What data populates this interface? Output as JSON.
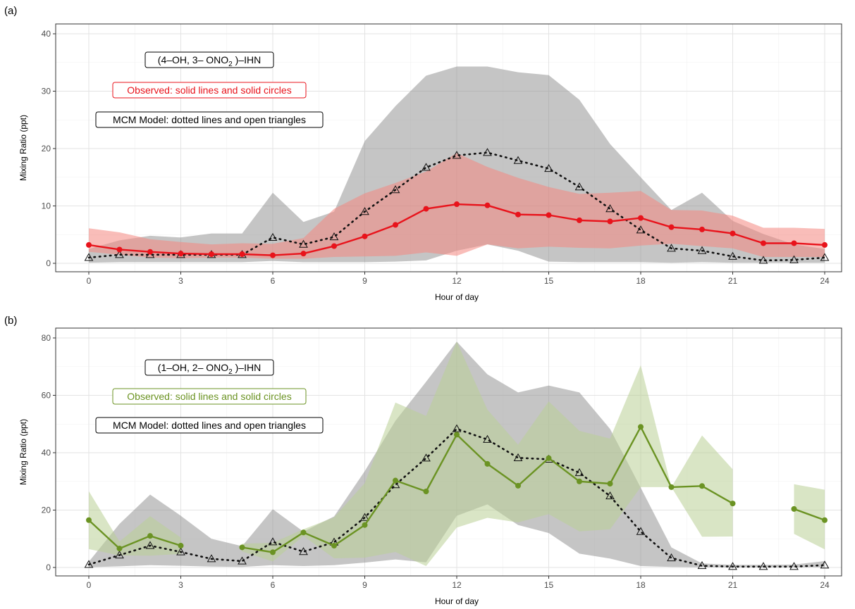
{
  "figure": {
    "panel_labels": [
      "(a)",
      "(b)"
    ]
  },
  "chart_data": [
    {
      "type": "line",
      "panel": "(a)",
      "xlabel": "Hour of day",
      "ylabel": "Mixing Ratio (ppt)",
      "xlim": [
        0,
        24
      ],
      "ylim": [
        0,
        40
      ],
      "xticks": [
        0,
        3,
        6,
        9,
        12,
        15,
        18,
        21,
        24
      ],
      "yticks": [
        0,
        10,
        20,
        30,
        40
      ],
      "grid": true,
      "annotations": {
        "compound": {
          "pre": "(4–OH, 3– ONO",
          "sub": "2",
          "post": " )–IHN"
        },
        "observed_note": "Observed: solid lines and solid circles",
        "model_note": "MCM Model: dotted lines and open triangles"
      },
      "colors": {
        "observed": "#e8131b",
        "observed_band": "#f4877f",
        "model": "#111111",
        "model_band": "#8c8c8c"
      },
      "x": [
        0,
        1,
        2,
        3,
        4,
        5,
        6,
        7,
        8,
        9,
        10,
        11,
        12,
        13,
        14,
        15,
        16,
        17,
        18,
        19,
        20,
        21,
        22,
        23,
        24
      ],
      "series": [
        {
          "role": "observed",
          "values": [
            3.2,
            2.4,
            2.0,
            1.7,
            1.6,
            1.6,
            1.4,
            1.7,
            3.0,
            4.7,
            6.7,
            9.5,
            10.3,
            10.1,
            8.5,
            8.4,
            7.5,
            7.3,
            7.9,
            6.3,
            5.9,
            5.2,
            3.5,
            3.5,
            3.2
          ],
          "band_upper": [
            6.1,
            5.4,
            4.2,
            3.7,
            3.3,
            3.5,
            3.4,
            4.4,
            9.5,
            12.2,
            14.0,
            16.0,
            19.2,
            16.8,
            14.9,
            13.3,
            12.1,
            12.3,
            12.6,
            9.3,
            9.2,
            8.3,
            6.2,
            6.2,
            6.0
          ],
          "band_lower": [
            2.0,
            1.5,
            1.0,
            0.9,
            1.0,
            1.0,
            0.8,
            0.8,
            1.1,
            1.2,
            1.3,
            1.9,
            1.3,
            3.3,
            2.6,
            2.9,
            2.7,
            2.6,
            3.1,
            3.4,
            3.0,
            2.6,
            1.1,
            1.1,
            1.1
          ]
        },
        {
          "role": "model",
          "values": [
            1.0,
            1.5,
            1.5,
            1.5,
            1.5,
            1.5,
            4.5,
            3.3,
            4.6,
            9.0,
            12.8,
            16.7,
            18.8,
            19.3,
            17.9,
            16.5,
            13.3,
            9.5,
            5.8,
            2.6,
            2.2,
            1.2,
            0.5,
            0.6,
            1.0
          ],
          "band_upper": [
            2.5,
            4.0,
            4.8,
            4.5,
            5.2,
            5.2,
            12.3,
            7.2,
            9.0,
            21.3,
            27.4,
            32.7,
            34.3,
            34.3,
            33.3,
            32.8,
            28.5,
            20.8,
            15.0,
            9.3,
            12.3,
            7.4,
            5.1,
            3.3,
            2.5
          ],
          "band_lower": [
            0.1,
            0.2,
            0.2,
            0.2,
            0.2,
            0.2,
            0.4,
            0.2,
            0.2,
            0.2,
            0.3,
            0.5,
            2.2,
            3.3,
            2.2,
            0.3,
            0.2,
            0.2,
            0.2,
            0.1,
            0.2,
            0.1,
            0.1,
            0.1,
            0.1
          ]
        }
      ]
    },
    {
      "type": "line",
      "panel": "(b)",
      "xlabel": "Hour of day",
      "ylabel": "Mixing Ratio (ppt)",
      "xlim": [
        0,
        24
      ],
      "ylim": [
        0,
        80
      ],
      "xticks": [
        0,
        3,
        6,
        9,
        12,
        15,
        18,
        21,
        24
      ],
      "yticks": [
        0,
        20,
        40,
        60,
        80
      ],
      "grid": true,
      "annotations": {
        "compound": {
          "pre": "(1–OH, 2– ONO",
          "sub": "2",
          "post": " )–IHN"
        },
        "observed_note": "Observed: solid lines and solid circles",
        "model_note": "MCM Model: dotted lines and open triangles"
      },
      "colors": {
        "observed": "#6b9323",
        "observed_band": "#b9cf95",
        "model": "#111111",
        "model_band": "#8c8c8c"
      },
      "x": [
        0,
        1,
        2,
        3,
        4,
        5,
        6,
        7,
        8,
        9,
        10,
        11,
        12,
        13,
        14,
        15,
        16,
        17,
        18,
        19,
        20,
        21,
        22,
        23,
        24
      ],
      "series": [
        {
          "role": "observed",
          "values": [
            16.5,
            6.6,
            11.0,
            7.6,
            null,
            7.0,
            5.3,
            12.2,
            7.6,
            14.8,
            30.3,
            26.5,
            46.3,
            36.1,
            28.5,
            38.1,
            30.0,
            29.2,
            49.0,
            28.0,
            28.4,
            22.3,
            null,
            20.4,
            16.5
          ],
          "band_upper": [
            26.6,
            9.0,
            17.9,
            10.4,
            null,
            8.3,
            8.6,
            13.3,
            17.5,
            29.4,
            57.5,
            52.8,
            78.7,
            55.0,
            42.8,
            57.9,
            47.6,
            44.9,
            70.5,
            27.9,
            46.0,
            34.2,
            null,
            29.0,
            27.1
          ],
          "band_lower": [
            6.4,
            4.2,
            4.1,
            4.7,
            null,
            5.6,
            2.1,
            11.0,
            3.2,
            3.4,
            5.4,
            0.5,
            13.9,
            17.3,
            15.7,
            18.6,
            12.6,
            13.3,
            28.0,
            28.0,
            10.7,
            10.8,
            null,
            11.7,
            6.3
          ]
        },
        {
          "role": "model",
          "values": [
            1.0,
            4.3,
            7.6,
            5.4,
            3.0,
            2.2,
            8.9,
            5.5,
            8.8,
            17.4,
            28.8,
            38.1,
            48.3,
            44.6,
            38.2,
            37.7,
            33.0,
            24.9,
            12.5,
            3.3,
            0.6,
            0.3,
            0.3,
            0.3,
            0.8
          ],
          "band_upper": [
            2.0,
            15.2,
            25.4,
            18.0,
            10.0,
            7.4,
            20.3,
            12.5,
            17.8,
            33.6,
            51.1,
            64.7,
            78.7,
            67.3,
            61.0,
            63.4,
            61.0,
            48.3,
            27.8,
            7.0,
            1.4,
            0.9,
            0.9,
            1.0,
            2.2
          ],
          "band_lower": [
            0.1,
            0.4,
            0.8,
            0.6,
            0.3,
            0.2,
            0.8,
            0.5,
            0.8,
            1.7,
            2.8,
            1.8,
            18.0,
            22.0,
            14.8,
            12.0,
            4.8,
            3.1,
            0.5,
            0.2,
            0.1,
            0.1,
            0.1,
            0.1,
            0.1
          ]
        }
      ]
    }
  ]
}
